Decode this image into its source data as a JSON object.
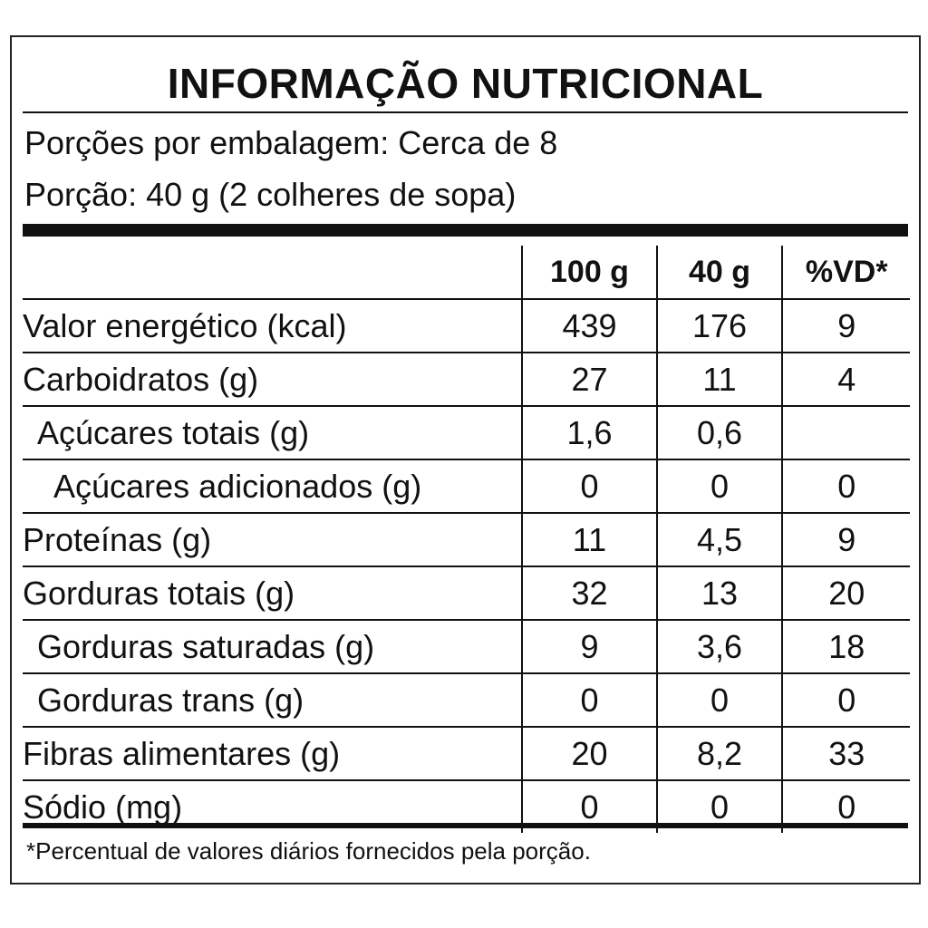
{
  "title": "INFORMAÇÃO NUTRICIONAL",
  "servings_per_package": "Porções por embalagem: Cerca de 8",
  "serving_size": "Porção: 40 g (2 colheres de sopa)",
  "table": {
    "headers": [
      "",
      "100 g",
      "40 g",
      "%VD*"
    ],
    "rows": [
      {
        "name": "Valor energético (kcal)",
        "indent": 0,
        "v100": "439",
        "v40": "176",
        "vd": "9"
      },
      {
        "name": "Carboidratos (g)",
        "indent": 0,
        "v100": "27",
        "v40": "11",
        "vd": "4"
      },
      {
        "name": "Açúcares totais (g)",
        "indent": 1,
        "v100": "1,6",
        "v40": "0,6",
        "vd": ""
      },
      {
        "name": "Açúcares adicionados (g)",
        "indent": 2,
        "v100": "0",
        "v40": "0",
        "vd": "0"
      },
      {
        "name": "Proteínas (g)",
        "indent": 0,
        "v100": "11",
        "v40": "4,5",
        "vd": "9"
      },
      {
        "name": "Gorduras totais (g)",
        "indent": 0,
        "v100": "32",
        "v40": "13",
        "vd": "20"
      },
      {
        "name": "Gorduras saturadas (g)",
        "indent": 1,
        "v100": "9",
        "v40": "3,6",
        "vd": "18"
      },
      {
        "name": "Gorduras trans (g)",
        "indent": 1,
        "v100": "0",
        "v40": "0",
        "vd": "0"
      },
      {
        "name": "Fibras alimentares (g)",
        "indent": 0,
        "v100": "20",
        "v40": "8,2",
        "vd": "33"
      },
      {
        "name": "Sódio (mg)",
        "indent": 0,
        "v100": "0",
        "v40": "0",
        "vd": "0"
      }
    ]
  },
  "footnote": "*Percentual de valores diários fornecidos pela porção."
}
